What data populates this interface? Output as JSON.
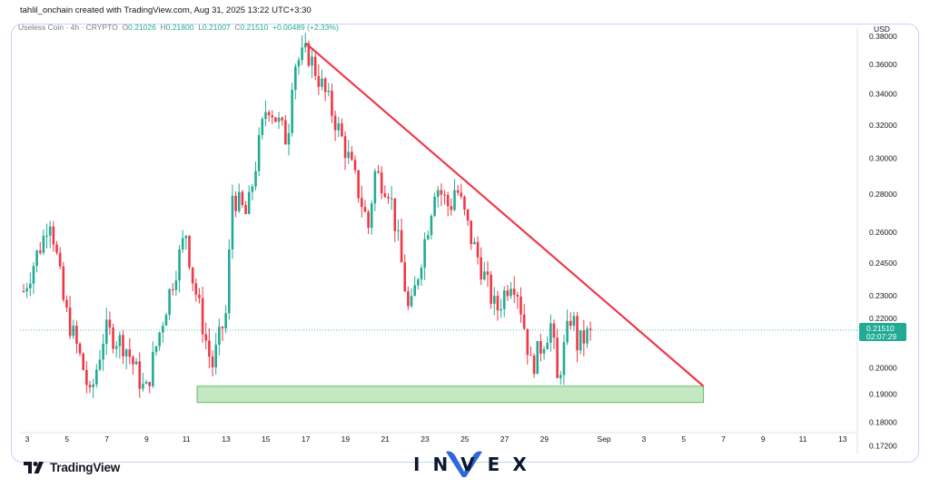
{
  "header": {
    "text": "tahlil_onchain created with TradingView.com, Aug 31, 2025 13:22 UTC+3:30"
  },
  "legend": {
    "symbol": "Useless Coin · 4h · CRYPTO",
    "o_label": "O",
    "o": "0.21026",
    "h_label": "H",
    "h": "0.21800",
    "l_label": "L",
    "l": "0.21007",
    "c_label": "C",
    "c": "0.21510",
    "change": "+0.00489 (+2.33%)"
  },
  "price_axis": {
    "currency": "USD",
    "ticks": [
      "0.38000",
      "0.36000",
      "0.34000",
      "0.32000",
      "0.30000",
      "0.28000",
      "0.26000",
      "0.24500",
      "0.23000",
      "0.22000",
      "0.20000",
      "0.19000",
      "0.18000",
      "0.17200"
    ]
  },
  "time_axis": {
    "ticks": [
      "3",
      "5",
      "7",
      "9",
      "11",
      "13",
      "15",
      "17",
      "19",
      "21",
      "23",
      "25",
      "27",
      "29",
      "Sep",
      "3",
      "5",
      "7",
      "9",
      "11",
      "13"
    ]
  },
  "last_price": {
    "value": "0.21510",
    "countdown": "02:07:29"
  },
  "branding": {
    "tradingview": "TradingView",
    "invex": "INVEX"
  },
  "colors": {
    "up": "#22ab94",
    "down": "#f23645",
    "trendline": "#f0394c",
    "zone_fill": "#a5dca0",
    "zone_border": "#66bb6a",
    "price_tag": "#22ab94"
  },
  "chart_data": {
    "type": "candlestick",
    "log_scale": true,
    "interval": "4h",
    "x_axis": "Aug 3 – Sep 13, 2025",
    "y_unit": "USD",
    "ylim": [
      0.165,
      0.395
    ],
    "anchors": [
      [
        "Aug 3",
        0.232
      ],
      [
        "Aug 4",
        0.258
      ],
      [
        "Aug 4",
        0.27
      ],
      [
        "Aug 5",
        0.225
      ],
      [
        "Aug 6",
        0.198
      ],
      [
        "Aug 6",
        0.188
      ],
      [
        "Aug 7",
        0.215
      ],
      [
        "Aug 8",
        0.209
      ],
      [
        "Aug 9",
        0.19
      ],
      [
        "Aug 10",
        0.225
      ],
      [
        "Aug 11",
        0.26
      ],
      [
        "Aug 11",
        0.24
      ],
      [
        "Aug 12",
        0.21
      ],
      [
        "Aug 12",
        0.2
      ],
      [
        "Aug 13",
        0.223
      ],
      [
        "Aug 13",
        0.28
      ],
      [
        "Aug 14",
        0.268
      ],
      [
        "Aug 15",
        0.335
      ],
      [
        "Aug 16",
        0.31
      ],
      [
        "Aug 16",
        0.36
      ],
      [
        "Aug 17",
        0.368
      ],
      [
        "Aug 18",
        0.335
      ],
      [
        "Aug 19",
        0.3
      ],
      [
        "Aug 20",
        0.262
      ],
      [
        "Aug 20",
        0.292
      ],
      [
        "Aug 21",
        0.283
      ],
      [
        "Aug 22",
        0.22
      ],
      [
        "Aug 22",
        0.233
      ],
      [
        "Aug 23",
        0.268
      ],
      [
        "Aug 23",
        0.286
      ],
      [
        "Aug 24",
        0.272
      ],
      [
        "Aug 24",
        0.285
      ],
      [
        "Aug 25",
        0.258
      ],
      [
        "Aug 26",
        0.23
      ],
      [
        "Aug 26",
        0.223
      ],
      [
        "Aug 27",
        0.238
      ],
      [
        "Aug 27",
        0.235
      ],
      [
        "Aug 28",
        0.2
      ],
      [
        "Aug 29",
        0.218
      ],
      [
        "Aug 29",
        0.194
      ],
      [
        "Aug 30",
        0.223
      ],
      [
        "Aug 30",
        0.209
      ],
      [
        "Aug 31",
        0.215
      ]
    ],
    "trendline": {
      "from": [
        "Aug 17",
        0.375
      ],
      "to": [
        "Sep 6",
        0.193
      ]
    },
    "support_zone": {
      "from": "Aug 12",
      "to": "Sep 6",
      "top": 0.193,
      "bottom": 0.187
    },
    "last_close": 0.2151
  }
}
